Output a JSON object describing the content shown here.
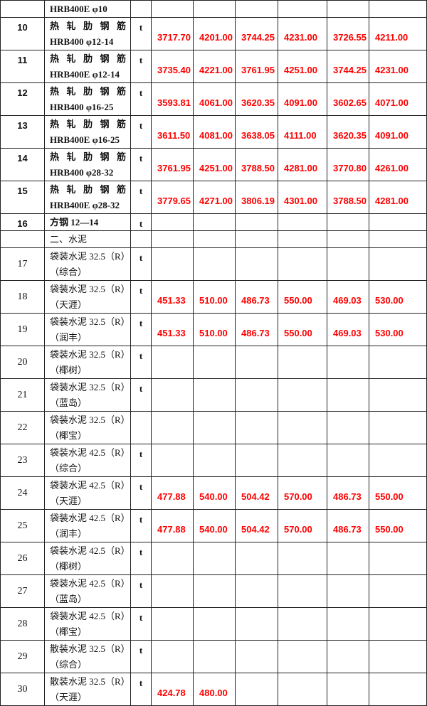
{
  "rows": [
    {
      "no": "",
      "l1": "HRB400E φ10",
      "l2": "",
      "unit": "",
      "vals": [
        "",
        "",
        "",
        "",
        "",
        ""
      ],
      "style": "bold",
      "h": 22
    },
    {
      "no": "10",
      "l1": "热 轧 肋 钢 筋",
      "l2": "HRB400 φ12-14",
      "unit": "t",
      "vals": [
        "3717.70",
        "4201.00",
        "3744.25",
        "4231.00",
        "3726.55",
        "4211.00"
      ],
      "style": "bold",
      "h": 45
    },
    {
      "no": "11",
      "l1": "热 轧 肋 钢 筋",
      "l2": "HRB400E φ12-14",
      "unit": "t",
      "vals": [
        "3735.40",
        "4221.00",
        "3761.95",
        "4251.00",
        "3744.25",
        "4231.00"
      ],
      "style": "bold",
      "h": 45
    },
    {
      "no": "12",
      "l1": "热 轧 肋 钢 筋",
      "l2": "HRB400 φ16-25",
      "unit": "t",
      "vals": [
        "3593.81",
        "4061.00",
        "3620.35",
        "4091.00",
        "3602.65",
        "4071.00"
      ],
      "style": "bold",
      "h": 45
    },
    {
      "no": "13",
      "l1": "热 轧 肋 钢 筋",
      "l2": "HRB400E φ16-25",
      "unit": "t",
      "vals": [
        "3611.50",
        "4081.00",
        "3638.05",
        "4111.00",
        "3620.35",
        "4091.00"
      ],
      "style": "bold",
      "h": 45
    },
    {
      "no": "14",
      "l1": "热 轧 肋 钢 筋",
      "l2": "HRB400 φ28-32",
      "unit": "t",
      "vals": [
        "3761.95",
        "4251.00",
        "3788.50",
        "4281.00",
        "3770.80",
        "4261.00"
      ],
      "style": "bold",
      "h": 45
    },
    {
      "no": "15",
      "l1": "热 轧 肋 钢 筋",
      "l2": "HRB400E φ28-32",
      "unit": "t",
      "vals": [
        "3779.65",
        "4271.00",
        "3806.19",
        "4301.00",
        "3788.50",
        "4281.00"
      ],
      "style": "bold",
      "h": 45
    },
    {
      "no": "16",
      "l1": "方钢 12—14",
      "l2": "",
      "unit": "t",
      "vals": [
        "",
        "",
        "",
        "",
        "",
        ""
      ],
      "style": "bold",
      "h": 23
    },
    {
      "no": "",
      "l1": "二、水泥",
      "l2": "",
      "unit": "",
      "vals": [
        "",
        "",
        "",
        "",
        "",
        ""
      ],
      "style": "plain",
      "h": 22
    },
    {
      "no": "17",
      "l1": "袋装水泥 32.5（R）",
      "l2": "（综合）",
      "unit": "t",
      "vals": [
        "",
        "",
        "",
        "",
        "",
        ""
      ],
      "style": "plain",
      "h": 44
    },
    {
      "no": "18",
      "l1": "袋装水泥 32.5（R）",
      "l2": "（天涯）",
      "unit": "t",
      "vals": [
        "451.33",
        "510.00",
        "486.73",
        "550.00",
        "469.03",
        "530.00"
      ],
      "style": "plain",
      "h": 45
    },
    {
      "no": "19",
      "l1": "袋装水泥 32.5（R）",
      "l2": "（润丰）",
      "unit": "t",
      "vals": [
        "451.33",
        "510.00",
        "486.73",
        "550.00",
        "469.03",
        "530.00"
      ],
      "style": "plain",
      "h": 44
    },
    {
      "no": "20",
      "l1": "袋装水泥 32.5（R）",
      "l2": "（椰树）",
      "unit": "t",
      "vals": [
        "",
        "",
        "",
        "",
        "",
        ""
      ],
      "style": "plain",
      "h": 45
    },
    {
      "no": "21",
      "l1": "袋装水泥 32.5（R）",
      "l2": "（蓝岛）",
      "unit": "t",
      "vals": [
        "",
        "",
        "",
        "",
        "",
        ""
      ],
      "style": "plain",
      "h": 44
    },
    {
      "no": "22",
      "l1": "袋装水泥 32.5（R）",
      "l2": "（椰宝）",
      "unit": "",
      "vals": [
        "",
        "",
        "",
        "",
        "",
        ""
      ],
      "style": "plain",
      "h": 44
    },
    {
      "no": "23",
      "l1": "袋装水泥 42.5（R）",
      "l2": "（综合）",
      "unit": "t",
      "vals": [
        "",
        "",
        "",
        "",
        "",
        ""
      ],
      "style": "plain",
      "h": 45
    },
    {
      "no": "24",
      "l1": "袋装水泥 42.5（R）",
      "l2": "（天涯）",
      "unit": "t",
      "vals": [
        "477.88",
        "540.00",
        "504.42",
        "570.00",
        "486.73",
        "550.00"
      ],
      "style": "plain",
      "h": 44
    },
    {
      "no": "25",
      "l1": "袋装水泥 42.5（R）",
      "l2": "（润丰）",
      "unit": "t",
      "vals": [
        "477.88",
        "540.00",
        "504.42",
        "570.00",
        "486.73",
        "550.00"
      ],
      "style": "plain",
      "h": 44
    },
    {
      "no": "26",
      "l1": "袋装水泥 42.5（R）",
      "l2": "（椰树）",
      "unit": "t",
      "vals": [
        "",
        "",
        "",
        "",
        "",
        ""
      ],
      "style": "plain",
      "h": 45
    },
    {
      "no": "27",
      "l1": "袋装水泥 42.5（R）",
      "l2": "（蓝岛）",
      "unit": "t",
      "vals": [
        "",
        "",
        "",
        "",
        "",
        ""
      ],
      "style": "plain",
      "h": 44
    },
    {
      "no": "28",
      "l1": "袋装水泥 42.5（R）",
      "l2": "（椰宝）",
      "unit": "t",
      "vals": [
        "",
        "",
        "",
        "",
        "",
        ""
      ],
      "style": "plain",
      "h": 45
    },
    {
      "no": "29",
      "l1": "散装水泥 32.5（R）",
      "l2": "（综合）",
      "unit": "t",
      "vals": [
        "",
        "",
        "",
        "",
        "",
        ""
      ],
      "style": "plain",
      "h": 44
    },
    {
      "no": "30",
      "l1": "散装水泥 32.5（R）",
      "l2": "（天涯）",
      "unit": "t",
      "vals": [
        "424.78",
        "480.00",
        "",
        "",
        "",
        ""
      ],
      "style": "plain",
      "h": 44
    }
  ]
}
